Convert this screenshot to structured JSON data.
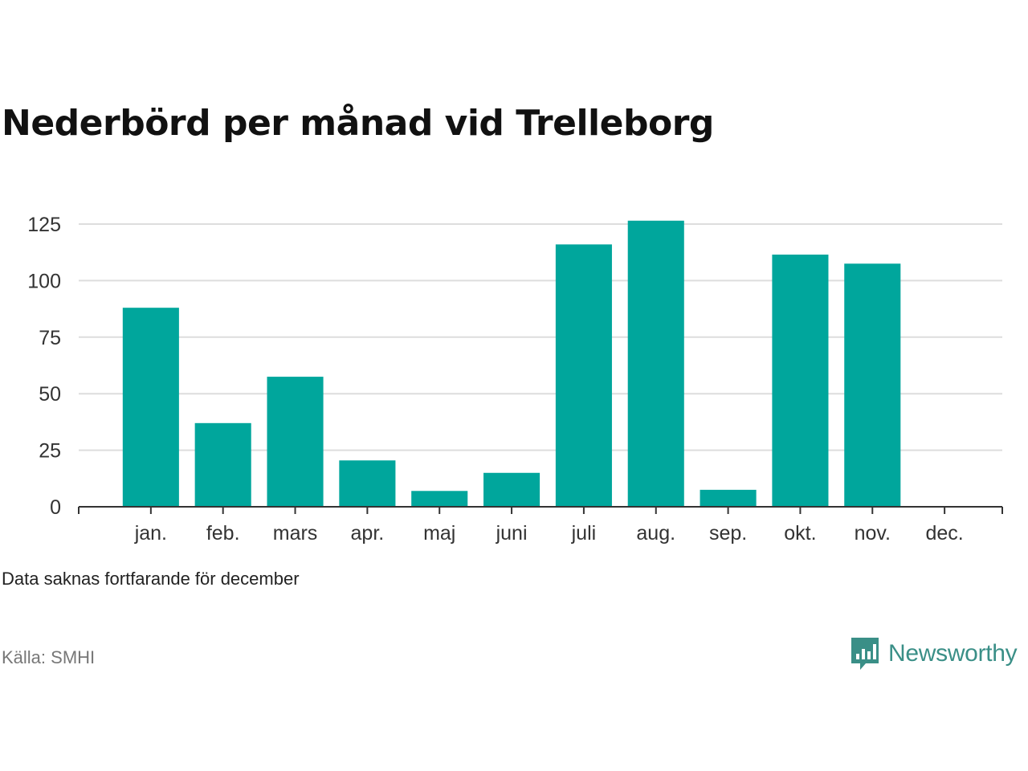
{
  "title": "Nederbörd per månad vid Trelleborg",
  "note": "Data saknas fortfarande för december",
  "source": "Källa: SMHI",
  "brand": {
    "name": "Newsworthy",
    "icon": "newsworthy-logo-icon"
  },
  "colors": {
    "bar": "#00a69c",
    "grid": "#dddddd",
    "axis": "#333333",
    "brand": "#3a8f87"
  },
  "chart_data": {
    "type": "bar",
    "categories": [
      "jan.",
      "feb.",
      "mars",
      "apr.",
      "maj",
      "juni",
      "juli",
      "aug.",
      "sep.",
      "okt.",
      "nov.",
      "dec."
    ],
    "values": [
      88,
      37,
      57.5,
      20.5,
      7,
      15,
      116,
      126.5,
      7.5,
      111.5,
      107.5,
      null
    ],
    "yticks": [
      0,
      25,
      50,
      75,
      100,
      125
    ],
    "ylim": [
      0,
      125
    ],
    "grid": true,
    "legend": "none"
  }
}
